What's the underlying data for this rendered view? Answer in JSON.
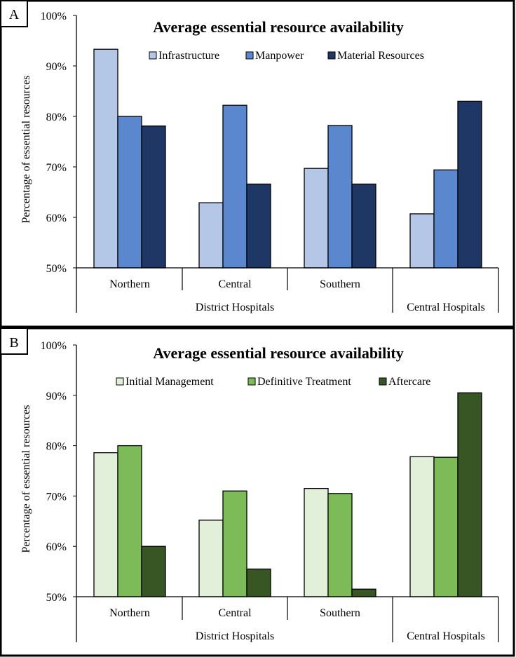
{
  "chart_data": [
    {
      "panel": "A",
      "type": "bar",
      "title": "Average essential resource availability",
      "ylabel": "Percentage of essential resources",
      "ylim": [
        50,
        100
      ],
      "yticks": [
        "50%",
        "60%",
        "70%",
        "80%",
        "90%",
        "100%"
      ],
      "categories": [
        "Northern",
        "Central",
        "Southern",
        "Central Hospitals"
      ],
      "groups": [
        {
          "label": "District Hospitals",
          "categories": [
            "Northern",
            "Central",
            "Southern"
          ]
        },
        {
          "label": "",
          "categories": [
            "Central Hospitals"
          ]
        }
      ],
      "series": [
        {
          "name": "Infrastructure",
          "color": "#b4c7e7",
          "values": [
            93.3,
            62.9,
            69.7,
            60.7
          ]
        },
        {
          "name": "Manpower",
          "color": "#5b87cf",
          "values": [
            80.0,
            82.2,
            78.2,
            69.4
          ]
        },
        {
          "name": "Material Resources",
          "color": "#1f3764",
          "values": [
            78.1,
            66.6,
            66.6,
            83.0
          ]
        }
      ],
      "legend_position": "top"
    },
    {
      "panel": "B",
      "type": "bar",
      "title": "Average essential resource availability",
      "ylabel": "Percentage of essential resources",
      "ylim": [
        50,
        100
      ],
      "yticks": [
        "50%",
        "60%",
        "70%",
        "80%",
        "90%",
        "100%"
      ],
      "categories": [
        "Northern",
        "Central",
        "Southern",
        "Central Hospitals"
      ],
      "groups": [
        {
          "label": "District Hospitals",
          "categories": [
            "Northern",
            "Central",
            "Southern"
          ]
        },
        {
          "label": "",
          "categories": [
            "Central Hospitals"
          ]
        }
      ],
      "series": [
        {
          "name": "Initial Management",
          "color": "#e2efd9",
          "values": [
            78.6,
            65.2,
            71.5,
            77.8
          ]
        },
        {
          "name": "Definitive Treatment",
          "color": "#7cbb58",
          "values": [
            80.0,
            71.0,
            70.5,
            77.7
          ]
        },
        {
          "name": "Aftercare",
          "color": "#375623",
          "values": [
            60.0,
            55.5,
            51.5,
            90.5
          ]
        }
      ],
      "legend_position": "top"
    }
  ]
}
